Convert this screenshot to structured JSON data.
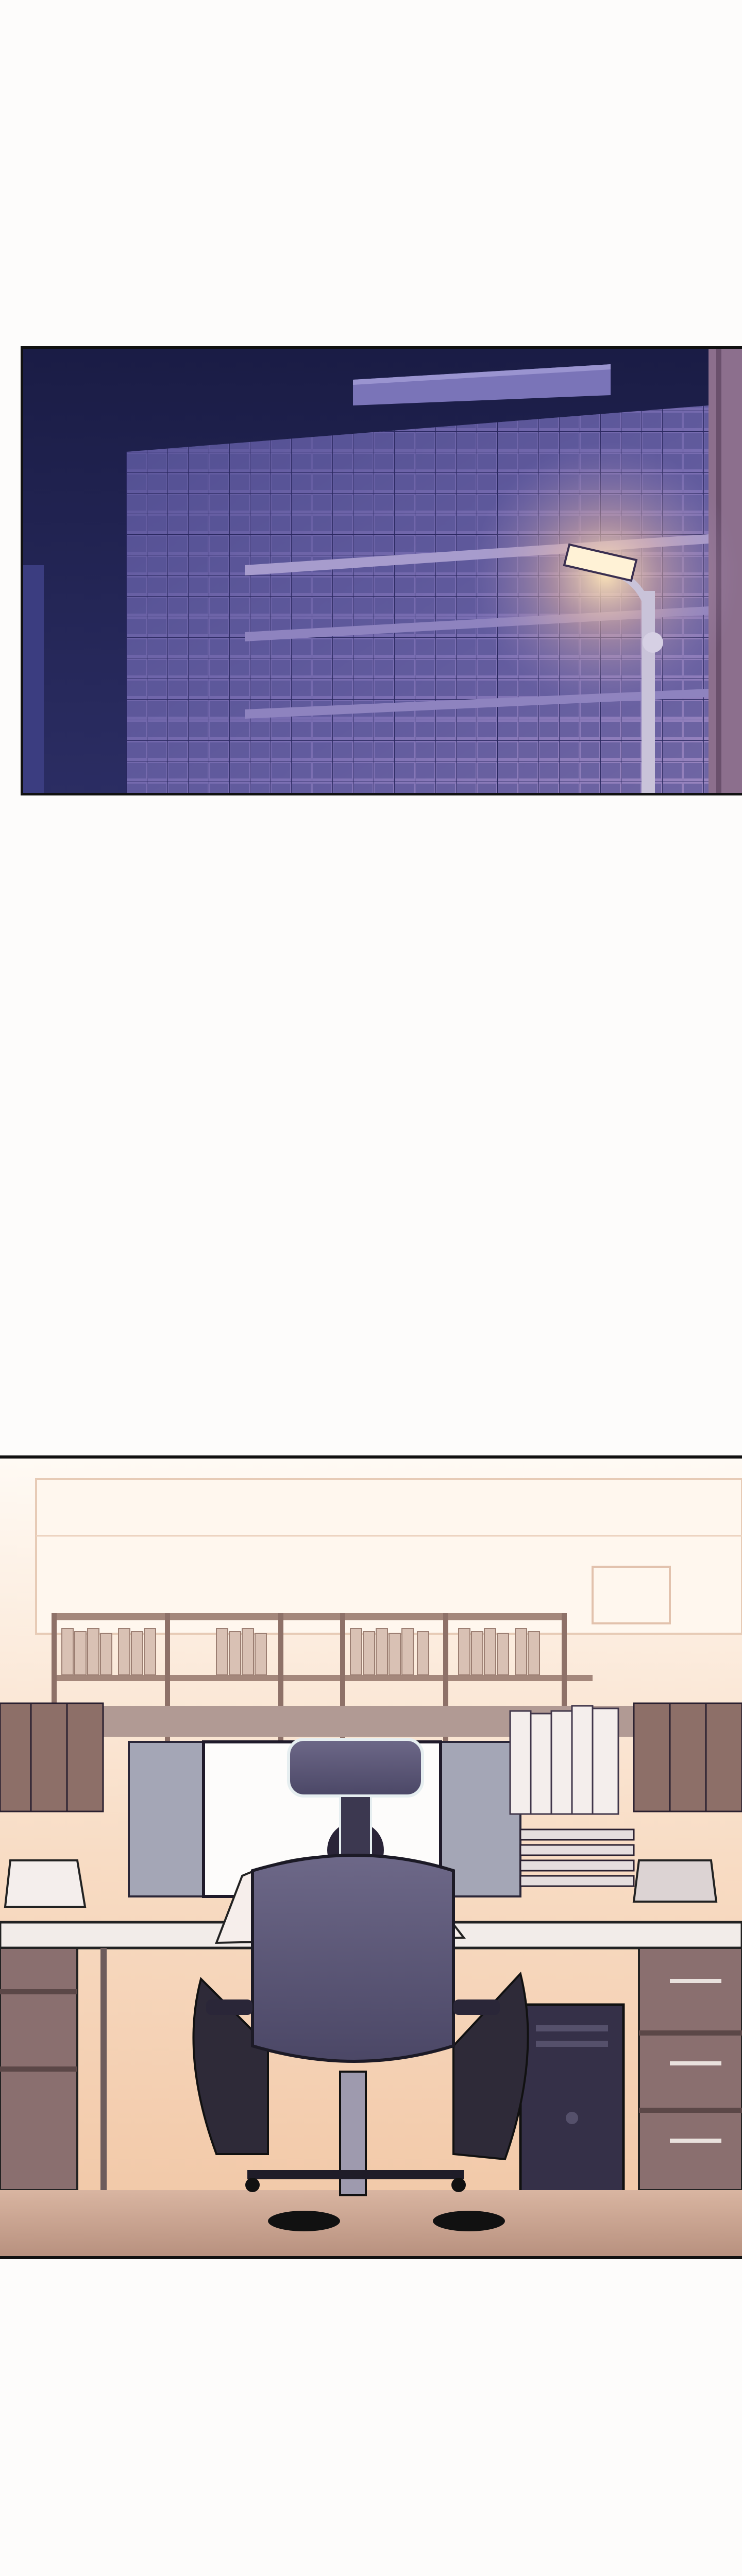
{
  "panels": [
    {
      "id": "building-night",
      "scene": "office-building-exterior-night",
      "colors": {
        "sky": "#1b1e4a",
        "building": "#6e62a8",
        "lamp_glow": "#ffd8a0"
      }
    },
    {
      "id": "office-interior",
      "scene": "office-interior-worker-at-desk",
      "colors": {
        "window_light": "#fbe6d0",
        "desk": "#f2ece9",
        "cabinet": "#8a6f6f",
        "chair": "#5e5a78",
        "floor": "#c8a493"
      }
    }
  ]
}
